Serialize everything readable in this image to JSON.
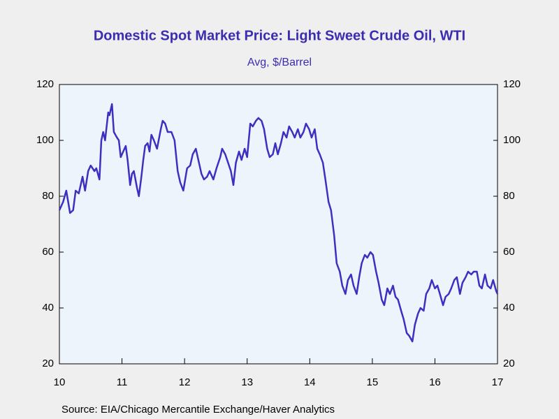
{
  "chart_data": {
    "type": "line",
    "title": "Domestic Spot Market Price: Light Sweet Crude Oil, WTI",
    "subtitle": "Avg, $/Barrel",
    "source": "Source:  EIA/Chicago Mercantile Exchange/Haver Analytics",
    "xlim": [
      10,
      17
    ],
    "xticks": [
      10,
      11,
      12,
      13,
      14,
      15,
      16,
      17
    ],
    "ylim": [
      20,
      120
    ],
    "yticks": [
      20,
      40,
      60,
      80,
      100,
      120
    ],
    "x": [
      10.0,
      10.06,
      10.11,
      10.17,
      10.22,
      10.26,
      10.31,
      10.37,
      10.41,
      10.46,
      10.5,
      10.56,
      10.59,
      10.64,
      10.67,
      10.7,
      10.73,
      10.76,
      10.78,
      10.8,
      10.84,
      10.87,
      10.92,
      10.95,
      10.98,
      11.02,
      11.06,
      11.09,
      11.13,
      11.16,
      11.19,
      11.24,
      11.27,
      11.31,
      11.34,
      11.37,
      11.41,
      11.44,
      11.47,
      11.51,
      11.56,
      11.62,
      11.65,
      11.69,
      11.73,
      11.79,
      11.84,
      11.89,
      11.93,
      11.98,
      12.01,
      12.04,
      12.09,
      12.13,
      12.18,
      12.23,
      12.27,
      12.31,
      12.36,
      12.4,
      12.46,
      12.51,
      12.57,
      12.6,
      12.65,
      12.68,
      12.74,
      12.78,
      12.82,
      12.87,
      12.91,
      12.96,
      13.0,
      13.05,
      13.09,
      13.14,
      13.18,
      13.23,
      13.27,
      13.32,
      13.36,
      13.41,
      13.45,
      13.49,
      13.54,
      13.58,
      13.63,
      13.67,
      13.72,
      13.76,
      13.81,
      13.85,
      13.9,
      13.94,
      13.99,
      14.03,
      14.08,
      14.12,
      14.16,
      14.21,
      14.25,
      14.3,
      14.34,
      14.39,
      14.43,
      14.48,
      14.52,
      14.57,
      14.61,
      14.66,
      14.7,
      14.75,
      14.79,
      14.83,
      14.88,
      14.92,
      14.97,
      15.01,
      15.06,
      15.1,
      15.15,
      15.19,
      15.24,
      15.28,
      15.33,
      15.37,
      15.41,
      15.46,
      15.5,
      15.55,
      15.59,
      15.64,
      15.68,
      15.73,
      15.77,
      15.82,
      15.86,
      15.91,
      15.95,
      16.0,
      16.04,
      16.08,
      16.13,
      16.17,
      16.22,
      16.26,
      16.31,
      16.35,
      16.4,
      16.44,
      16.49,
      16.53,
      16.58,
      16.62,
      16.67,
      16.71,
      16.75,
      16.8,
      16.84,
      16.89,
      16.93,
      16.98,
      17.0
    ],
    "series": [
      {
        "name": "WTI",
        "color": "#3d2fbf",
        "values": [
          75,
          78,
          82,
          74,
          75,
          82,
          81,
          87,
          82,
          89,
          91,
          89,
          90,
          86,
          100,
          103,
          100,
          106,
          110,
          109,
          113,
          103,
          101,
          100,
          94,
          96,
          98,
          93,
          84,
          88,
          89,
          83,
          80,
          87,
          93,
          98,
          99,
          96,
          102,
          100,
          97,
          104,
          107,
          106,
          103,
          103,
          100,
          89,
          85,
          82,
          86,
          90,
          91,
          95,
          97,
          92,
          88,
          86,
          87,
          89,
          86,
          90,
          94,
          97,
          95,
          93,
          89,
          84,
          92,
          96,
          93,
          97,
          94,
          106,
          105,
          107,
          108,
          107,
          104,
          97,
          94,
          95,
          99,
          95,
          99,
          103,
          101,
          105,
          103,
          101,
          104,
          101,
          103,
          106,
          104,
          101,
          104,
          97,
          95,
          92,
          86,
          78,
          75,
          66,
          56,
          53,
          48,
          45,
          50,
          52,
          48,
          45,
          51,
          56,
          59,
          58,
          60,
          59,
          53,
          49,
          43,
          41,
          47,
          45,
          48,
          44,
          43,
          39,
          36,
          31,
          30,
          28,
          34,
          38,
          40,
          39,
          45,
          47,
          50,
          47,
          48,
          45,
          41,
          44,
          45,
          47,
          50,
          51,
          45,
          49,
          51,
          53,
          52,
          53,
          53,
          48,
          47,
          52,
          48,
          47,
          50,
          46,
          45
        ]
      }
    ]
  }
}
